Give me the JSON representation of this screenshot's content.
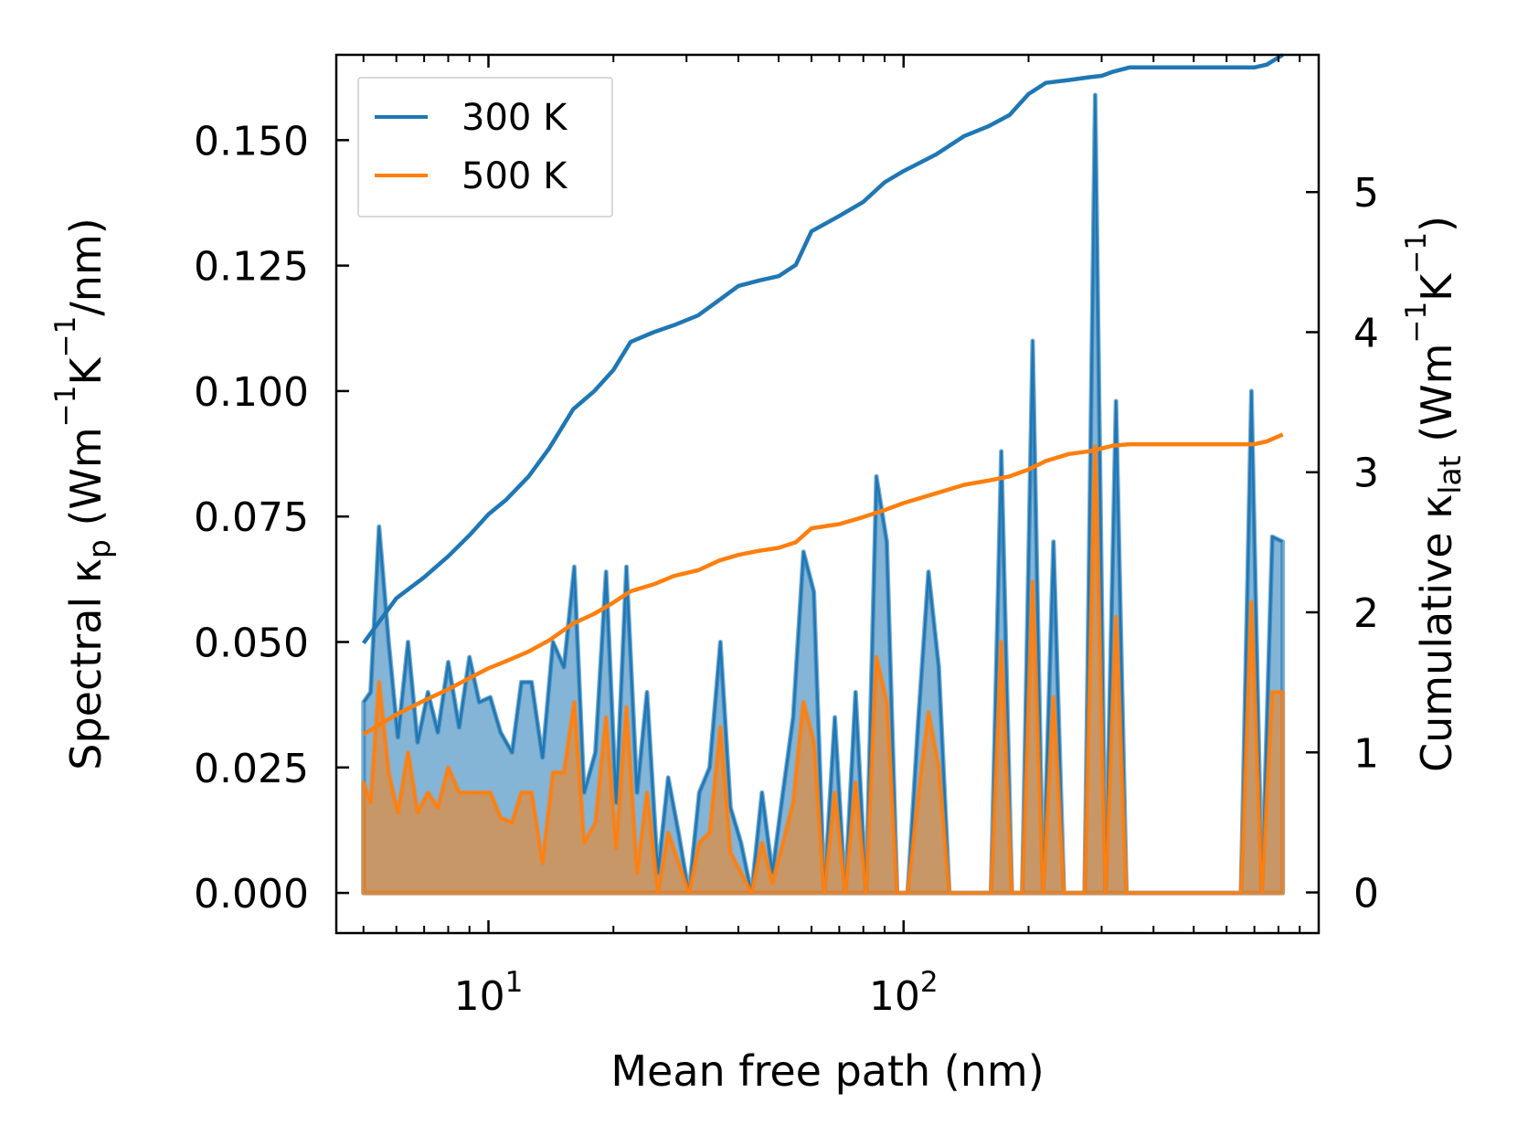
{
  "chart_data": {
    "type": "line",
    "xlabel": "Mean free path (nm)",
    "ylabel_left": {
      "main": "Spectral κ",
      "sub": "p",
      "units": " (Wm",
      "sup1": "−1",
      "mid": "K",
      "sup2": "−1",
      "end": "/nm)"
    },
    "ylabel_right": {
      "main": "Cumulative κ",
      "sub": "lat",
      "units": " (Wm",
      "sup1": "−1",
      "mid": "K",
      "sup2": "−1",
      "end": ")"
    },
    "x_scale": "log",
    "xlim": [
      4.3,
      1000
    ],
    "ylim_left": [
      -0.008,
      0.167
    ],
    "ylim_right": [
      -0.29,
      5.98
    ],
    "x_ticks": [
      {
        "value": 10,
        "base": "10",
        "exp": "1"
      },
      {
        "value": 100,
        "base": "10",
        "exp": "2"
      }
    ],
    "y_ticks_left": [
      "0.000",
      "0.025",
      "0.050",
      "0.075",
      "0.100",
      "0.125",
      "0.150"
    ],
    "y_ticks_right": [
      "0",
      "1",
      "2",
      "3",
      "4",
      "5"
    ],
    "legend": {
      "position": "top-left",
      "entries": [
        {
          "label": "300 K",
          "color": "#1f77b4"
        },
        {
          "label": "500 K",
          "color": "#ff7f0e"
        }
      ]
    },
    "spectral": [
      {
        "name": "300 K",
        "color": "#1f77b4",
        "x": [
          5.0,
          5.2,
          5.45,
          5.75,
          6.05,
          6.4,
          6.75,
          7.15,
          7.55,
          8.0,
          8.5,
          9.0,
          9.5,
          10.1,
          10.7,
          11.4,
          12.0,
          12.7,
          13.5,
          14.3,
          15.2,
          16.1,
          17.0,
          18.1,
          19.2,
          20.3,
          21.5,
          22.8,
          24.1,
          25.6,
          27.1,
          28.7,
          30.4,
          32.2,
          34.1,
          36.2,
          38.3,
          40.6,
          43.0,
          45.6,
          48.3,
          51.2,
          54.2,
          57.4,
          60.8,
          64.4,
          68.3,
          72.3,
          76.6,
          81.2,
          86.0,
          91.1,
          96.5,
          102.3,
          108.4,
          114.8,
          121.6,
          128.9,
          136.5,
          144.7,
          153.3,
          162.4,
          172.0,
          182.3,
          193.1,
          204.6,
          216.8,
          229.7,
          243.3,
          257.8,
          273.1,
          289.4,
          306.6,
          324.8,
          344.2,
          364.6,
          386.3,
          409.3,
          433.7,
          459.5,
          486.8,
          515.8,
          546.5,
          579.0,
          613.4,
          649.9,
          688.6,
          729.5,
          773.0,
          818.9
        ],
        "y": [
          0.038,
          0.04,
          0.073,
          0.05,
          0.031,
          0.05,
          0.03,
          0.04,
          0.032,
          0.046,
          0.033,
          0.047,
          0.038,
          0.039,
          0.032,
          0.028,
          0.042,
          0.042,
          0.027,
          0.05,
          0.045,
          0.065,
          0.02,
          0.028,
          0.064,
          0.018,
          0.065,
          0.02,
          0.04,
          0.004,
          0.023,
          0.012,
          0.0,
          0.02,
          0.025,
          0.05,
          0.017,
          0.01,
          0.0,
          0.02,
          0.004,
          0.02,
          0.035,
          0.068,
          0.06,
          0.0,
          0.035,
          0.0,
          0.04,
          0.0,
          0.083,
          0.07,
          0.0,
          0.0,
          0.034,
          0.064,
          0.045,
          0.0,
          0.0,
          0.0,
          0.0,
          0.0,
          0.088,
          0.0,
          0.0,
          0.11,
          0.0,
          0.07,
          0.0,
          0.0,
          0.0,
          0.159,
          0.0,
          0.098,
          0.0,
          0.0,
          0.0,
          0.0,
          0.0,
          0.0,
          0.0,
          0.0,
          0.0,
          0.0,
          0.0,
          0.0,
          0.1,
          0.0,
          0.071,
          0.07
        ]
      },
      {
        "name": "500 K",
        "color": "#ff7f0e",
        "x": [
          5.0,
          5.2,
          5.45,
          5.75,
          6.05,
          6.4,
          6.75,
          7.15,
          7.55,
          8.0,
          8.5,
          9.0,
          9.5,
          10.1,
          10.7,
          11.4,
          12.0,
          12.7,
          13.5,
          14.3,
          15.2,
          16.1,
          17.0,
          18.1,
          19.2,
          20.3,
          21.5,
          22.8,
          24.1,
          25.6,
          27.1,
          28.7,
          30.4,
          32.2,
          34.1,
          36.2,
          38.3,
          40.6,
          43.0,
          45.6,
          48.3,
          51.2,
          54.2,
          57.4,
          60.8,
          64.4,
          68.3,
          72.3,
          76.6,
          81.2,
          86.0,
          91.1,
          96.5,
          102.3,
          108.4,
          114.8,
          121.6,
          128.9,
          136.5,
          144.7,
          153.3,
          162.4,
          172.0,
          182.3,
          193.1,
          204.6,
          216.8,
          229.7,
          243.3,
          257.8,
          273.1,
          289.4,
          306.6,
          324.8,
          344.2,
          364.6,
          386.3,
          409.3,
          433.7,
          459.5,
          486.8,
          515.8,
          546.5,
          579.0,
          613.4,
          649.9,
          688.6,
          729.5,
          773.0,
          818.9
        ],
        "y": [
          0.022,
          0.018,
          0.042,
          0.024,
          0.016,
          0.028,
          0.016,
          0.02,
          0.017,
          0.025,
          0.02,
          0.02,
          0.02,
          0.02,
          0.015,
          0.014,
          0.02,
          0.02,
          0.006,
          0.024,
          0.024,
          0.038,
          0.01,
          0.014,
          0.035,
          0.009,
          0.037,
          0.004,
          0.02,
          0.0,
          0.012,
          0.006,
          0.0,
          0.01,
          0.012,
          0.033,
          0.008,
          0.004,
          0.0,
          0.01,
          0.002,
          0.01,
          0.018,
          0.038,
          0.03,
          0.0,
          0.02,
          0.0,
          0.022,
          0.0,
          0.047,
          0.038,
          0.0,
          0.0,
          0.019,
          0.036,
          0.025,
          0.0,
          0.0,
          0.0,
          0.0,
          0.0,
          0.05,
          0.0,
          0.0,
          0.062,
          0.0,
          0.039,
          0.0,
          0.0,
          0.0,
          0.089,
          0.0,
          0.055,
          0.0,
          0.0,
          0.0,
          0.0,
          0.0,
          0.0,
          0.0,
          0.0,
          0.0,
          0.0,
          0.0,
          0.0,
          0.058,
          0.0,
          0.04,
          0.04
        ]
      }
    ],
    "cumulative": [
      {
        "name": "300 K",
        "color": "#1f77b4",
        "x": [
          5.0,
          6.0,
          7.0,
          8.0,
          9.0,
          10.0,
          11.0,
          12.5,
          14.0,
          16.0,
          18.0,
          20.0,
          22.0,
          25.0,
          28.0,
          32.0,
          36.0,
          40.0,
          45.0,
          50.0,
          55.0,
          60.0,
          70.0,
          80.0,
          90.0,
          100.0,
          120.0,
          140.0,
          160.0,
          180.0,
          200.0,
          220.0,
          250.0,
          280.0,
          300.0,
          320.0,
          350.0,
          400.0,
          500.0,
          700.0,
          750.0,
          820.0
        ],
        "y": [
          1.78,
          2.1,
          2.25,
          2.4,
          2.55,
          2.7,
          2.8,
          2.97,
          3.17,
          3.45,
          3.58,
          3.73,
          3.93,
          4.0,
          4.05,
          4.12,
          4.23,
          4.33,
          4.37,
          4.4,
          4.48,
          4.72,
          4.83,
          4.93,
          5.07,
          5.15,
          5.27,
          5.4,
          5.47,
          5.55,
          5.7,
          5.78,
          5.8,
          5.82,
          5.83,
          5.86,
          5.89,
          5.89,
          5.89,
          5.89,
          5.91,
          5.98
        ]
      },
      {
        "name": "500 K",
        "color": "#ff7f0e",
        "x": [
          5.0,
          6.0,
          7.0,
          8.0,
          9.0,
          10.0,
          11.0,
          12.5,
          14.0,
          16.0,
          18.0,
          20.0,
          22.0,
          25.0,
          28.0,
          32.0,
          36.0,
          40.0,
          45.0,
          50.0,
          55.0,
          60.0,
          70.0,
          80.0,
          90.0,
          100.0,
          120.0,
          140.0,
          160.0,
          180.0,
          200.0,
          220.0,
          250.0,
          280.0,
          300.0,
          320.0,
          350.0,
          400.0,
          500.0,
          700.0,
          750.0,
          820.0
        ],
        "y": [
          1.13,
          1.27,
          1.37,
          1.45,
          1.53,
          1.6,
          1.65,
          1.72,
          1.8,
          1.92,
          1.99,
          2.07,
          2.15,
          2.2,
          2.26,
          2.3,
          2.37,
          2.41,
          2.44,
          2.46,
          2.5,
          2.6,
          2.63,
          2.68,
          2.73,
          2.78,
          2.85,
          2.91,
          2.94,
          2.97,
          3.02,
          3.08,
          3.13,
          3.15,
          3.17,
          3.19,
          3.2,
          3.2,
          3.2,
          3.2,
          3.22,
          3.27
        ]
      }
    ]
  }
}
